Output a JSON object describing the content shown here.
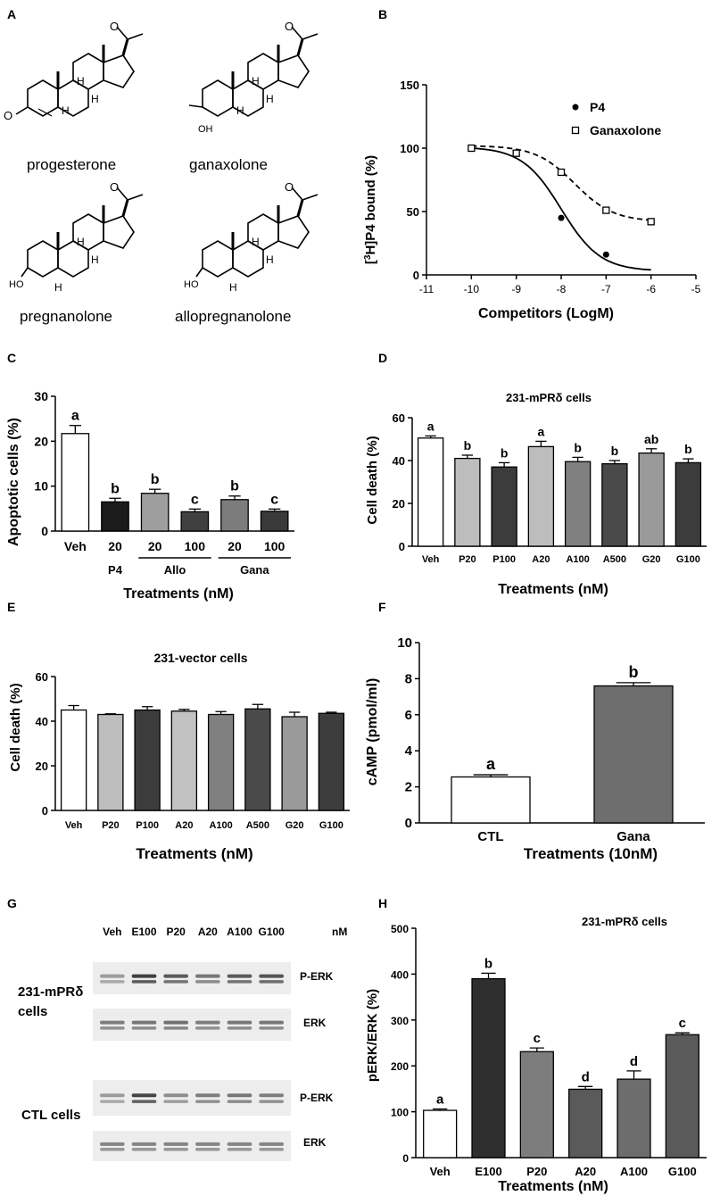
{
  "panels": {
    "A": {
      "letter": "A",
      "structures": [
        "progesterone",
        "ganaxolone",
        "pregnanolone",
        "allopregnanolone"
      ],
      "atoms": {
        "oxo": "O",
        "hydroxy": "OH",
        "ho": "HO",
        "h": "H"
      }
    },
    "B": {
      "letter": "B"
    },
    "C": {
      "letter": "C",
      "groups": [
        "P4",
        "Allo",
        "Gana"
      ]
    },
    "D": {
      "letter": "D"
    },
    "E": {
      "letter": "E"
    },
    "F": {
      "letter": "F"
    },
    "G": {
      "letter": "G",
      "lanes": [
        "Veh",
        "E100",
        "P20",
        "A20",
        "A100",
        "G100"
      ],
      "unit": "nM",
      "row_groups": [
        "231-mPRδ",
        "cells",
        "CTL cells"
      ],
      "band_labels": [
        "P-ERK",
        "ERK",
        "P-ERK",
        "ERK"
      ]
    },
    "H": {
      "letter": "H"
    }
  },
  "chart_data": [
    {
      "id": "B",
      "type": "line",
      "title": "",
      "xlabel": "Competitors (LogM)",
      "ylabel_parts": [
        "[",
        "3",
        "H]P4 bound (%)"
      ],
      "xlim": [
        -11,
        -5
      ],
      "ylim": [
        0,
        150
      ],
      "xticks": [
        "-11",
        "-10",
        "-9",
        "-8",
        "-7",
        "-6",
        "-5"
      ],
      "yticks": [
        "0",
        "50",
        "100",
        "150"
      ],
      "series": [
        {
          "name": "P4",
          "x": [
            -10,
            -9,
            -8,
            -7
          ],
          "y": [
            100,
            96,
            45,
            16
          ],
          "color": "#000000",
          "marker": "circle",
          "dash": false
        },
        {
          "name": "Ganaxolone",
          "x": [
            -10,
            -9,
            -8,
            -7,
            -6
          ],
          "y": [
            100,
            96,
            81,
            51,
            42
          ],
          "color": "#000000",
          "marker": "open-square",
          "dash": true
        }
      ],
      "legend": "top-right"
    },
    {
      "id": "C",
      "type": "bar",
      "ylabel": "Apoptotic cells (%)",
      "xlabel": "Treatments (nM)",
      "ylim": [
        0,
        30
      ],
      "yticks": [
        "0",
        "10",
        "20",
        "30"
      ],
      "categories": [
        "Veh",
        "20",
        "20",
        "100",
        "20",
        "100"
      ],
      "values": [
        21.7,
        6.5,
        8.4,
        4.3,
        7.0,
        4.4
      ],
      "errors": [
        1.8,
        0.8,
        0.9,
        0.6,
        0.8,
        0.5
      ],
      "letters": [
        "a",
        "b",
        "b",
        "c",
        "b",
        "c"
      ],
      "colors": [
        "#ffffff",
        "#1b1b1b",
        "#9e9e9e",
        "#404040",
        "#7c7c7c",
        "#3a3a3a"
      ]
    },
    {
      "id": "D",
      "type": "bar",
      "title": "231-mPRδ cells",
      "ylabel": "Cell death (%)",
      "xlabel": "Treatments (nM)",
      "ylim": [
        0,
        60
      ],
      "yticks": [
        "0",
        "20",
        "40",
        "60"
      ],
      "categories": [
        "Veh",
        "P20",
        "P100",
        "A20",
        "A100",
        "A500",
        "G20",
        "G100"
      ],
      "values": [
        50.5,
        41.0,
        37.0,
        46.5,
        39.5,
        38.5,
        43.5,
        39.0
      ],
      "errors": [
        1.0,
        1.5,
        2.0,
        2.5,
        2.0,
        1.5,
        2.0,
        1.8
      ],
      "letters": [
        "a",
        "b",
        "b",
        "a",
        "b",
        "b",
        "ab",
        "b"
      ],
      "colors": [
        "#ffffff",
        "#bdbdbd",
        "#3c3c3c",
        "#bdbdbd",
        "#808080",
        "#4a4a4a",
        "#9a9a9a",
        "#3c3c3c"
      ]
    },
    {
      "id": "E",
      "type": "bar",
      "title": "231-vector cells",
      "ylabel": "Cell death (%)",
      "xlabel": "Treatments (nM)",
      "ylim": [
        0,
        60
      ],
      "yticks": [
        "0",
        "20",
        "40",
        "60"
      ],
      "categories": [
        "Veh",
        "P20",
        "P100",
        "A20",
        "A100",
        "A500",
        "G20",
        "G100"
      ],
      "values": [
        45.0,
        43.0,
        45.0,
        44.5,
        43.0,
        45.5,
        42.0,
        43.5
      ],
      "errors": [
        2.0,
        0.3,
        1.5,
        0.8,
        1.3,
        2.0,
        2.0,
        0.5
      ],
      "letters": [],
      "colors": [
        "#ffffff",
        "#bdbdbd",
        "#3c3c3c",
        "#c2c2c2",
        "#808080",
        "#4a4a4a",
        "#9a9a9a",
        "#3c3c3c"
      ]
    },
    {
      "id": "F",
      "type": "bar",
      "ylabel": "cAMP (pmol/ml)",
      "xlabel": "Treatments (10nM)",
      "ylim": [
        0,
        10
      ],
      "yticks": [
        "0",
        "2",
        "4",
        "6",
        "8",
        "10"
      ],
      "categories": [
        "CTL",
        "Gana"
      ],
      "values": [
        2.55,
        7.6
      ],
      "errors": [
        0.12,
        0.18
      ],
      "letters": [
        "a",
        "b"
      ],
      "colors": [
        "#ffffff",
        "#6e6e6e"
      ]
    },
    {
      "id": "H",
      "type": "bar",
      "title": "231-mPRδ cells",
      "ylabel": "pERK/ERK (%)",
      "xlabel": "Treatments (nM)",
      "ylim": [
        0,
        500
      ],
      "yticks": [
        "0",
        "100",
        "200",
        "300",
        "400",
        "500"
      ],
      "categories": [
        "Veh",
        "E100",
        "P20",
        "A20",
        "A100",
        "G100"
      ],
      "values": [
        103,
        390,
        231,
        149,
        171,
        268
      ],
      "errors": [
        3,
        12,
        8,
        6,
        18,
        4
      ],
      "letters": [
        "a",
        "b",
        "c",
        "d",
        "d",
        "c"
      ],
      "colors": [
        "#ffffff",
        "#2f2f2f",
        "#7d7d7d",
        "#5a5a5a",
        "#6d6d6d",
        "#5a5a5a"
      ]
    }
  ]
}
